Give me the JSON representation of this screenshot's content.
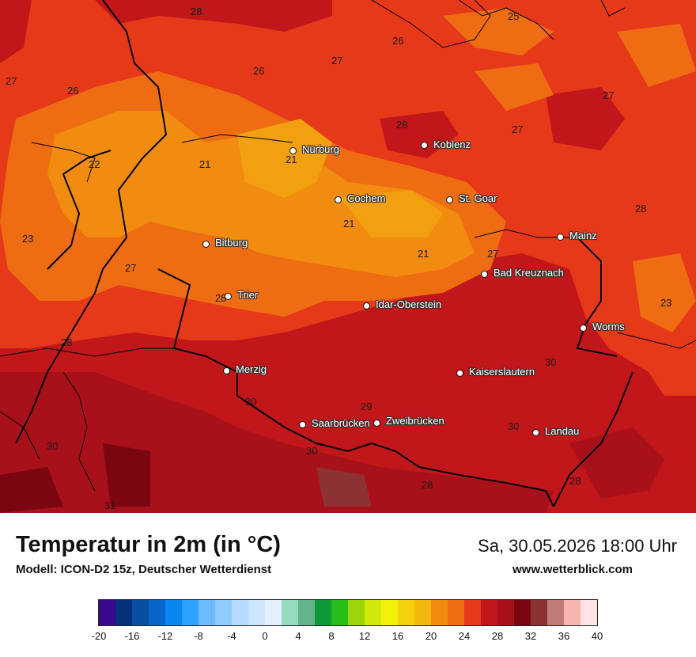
{
  "header": {
    "title": "Temperatur in 2m (in °C)",
    "model": "Modell: ICON-D2 15z, Deutscher Wetterdienst",
    "valid_time": "Sa, 30.05.2026 18:00 Uhr",
    "site": "www.wetterblick.com"
  },
  "cities": [
    {
      "name": "Nürburg"
    },
    {
      "name": "Koblenz"
    },
    {
      "name": "Cochem"
    },
    {
      "name": "St. Goar"
    },
    {
      "name": "Mainz"
    },
    {
      "name": "Bitburg"
    },
    {
      "name": "Bad Kreuznach"
    },
    {
      "name": "Trier"
    },
    {
      "name": "Idar-Oberstein"
    },
    {
      "name": "Worms"
    },
    {
      "name": "Merzig"
    },
    {
      "name": "Kaiserslautern"
    },
    {
      "name": "Saarbrücken"
    },
    {
      "name": "Zweibrücken"
    },
    {
      "name": "Landau"
    }
  ],
  "contour_labels": [
    "28",
    "25",
    "26",
    "27",
    "27",
    "26",
    "26",
    "27",
    "28",
    "27",
    "22",
    "21",
    "21",
    "21",
    "21",
    "28",
    "23",
    "27",
    "27",
    "28",
    "23",
    "28",
    "30",
    "29",
    "30",
    "30",
    "30",
    "30",
    "28",
    "31"
  ],
  "legend": {
    "ticks": [
      "-20",
      "-16",
      "-12",
      "-8",
      "-4",
      "0",
      "4",
      "8",
      "12",
      "16",
      "20",
      "24",
      "28",
      "32",
      "36",
      "40"
    ],
    "colors": [
      "#3a0a8c",
      "#05307a",
      "#0a4ea0",
      "#0966c8",
      "#0a86f0",
      "#2ea0ff",
      "#6ebaff",
      "#8ecbff",
      "#b4daff",
      "#cde5ff",
      "#e2f0ff",
      "#97dbbf",
      "#62b48a",
      "#0f9a3a",
      "#2cbe18",
      "#9bd60b",
      "#d2e80a",
      "#f1f20a",
      "#f3d10c",
      "#f2b80d",
      "#f18c10",
      "#ee6d12",
      "#e6391a",
      "#c1161a",
      "#a8101a",
      "#7a0612",
      "#8c3234",
      "#c07a7a",
      "#f5b6b0",
      "#fde3e3"
    ]
  }
}
